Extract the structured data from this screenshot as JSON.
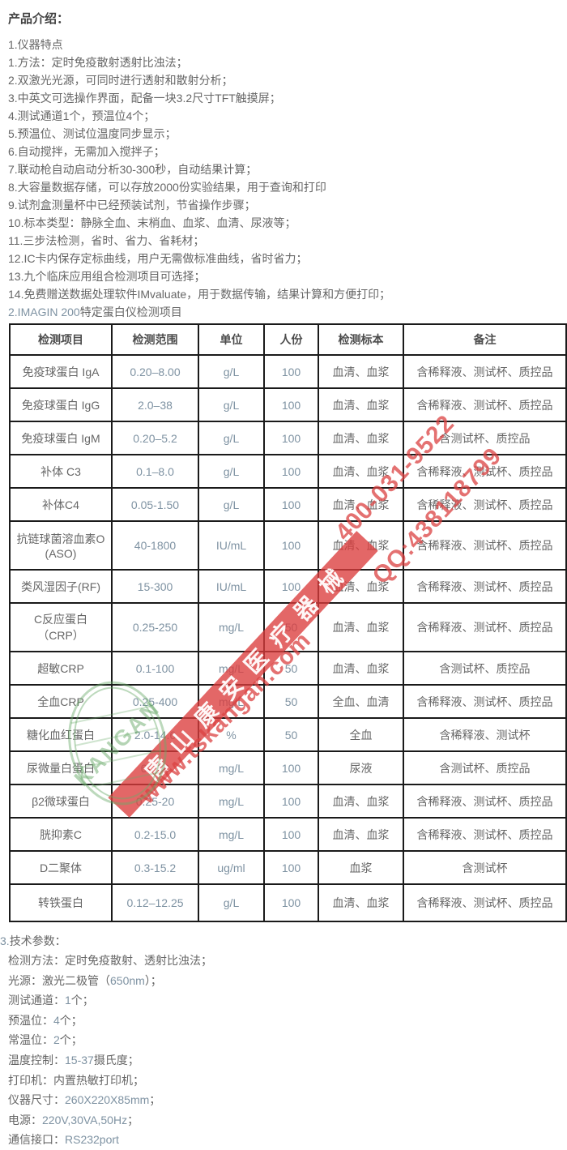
{
  "page": {
    "title": "产品介绍："
  },
  "features": {
    "heading": "1.仪器特点",
    "items": [
      "1.方法：定时免疫散射透射比浊法；",
      "2.双激光光源，可同时进行透射和散射分析；",
      "3.中英文可选操作界面，配备一块3.2尺寸TFT触摸屏；",
      "4.测试通道1个，预温位4个；",
      "5.预温位、测试位温度同步显示；",
      "6.自动搅拌，无需加入搅拌子；",
      "7.联动枪自动启动分析30-300秒，自动结果计算；",
      "8.大容量数据存储，可以存放2000份实验结果，用于查询和打印",
      "9.试剂盒测量杯中已经预装试剂，节省操作步骤；",
      "10.标本类型：静脉全血、末梢血、血浆、血清、尿液等；",
      "11.三步法检测，省时、省力、省耗材；",
      "12.IC卡内保存定标曲线，用户无需做标准曲线，省时省力；",
      "13.九个临床应用组合检测项目可选择；",
      "14.免费赠送数据处理软件IMvaluate，用于数据传输，结果计算和方便打印；"
    ]
  },
  "detection_section": {
    "title": "2.IMAGIN 200特定蛋白仪检测项目",
    "table": {
      "headers": [
        "检测项目",
        "检测范围",
        "单位",
        "人份",
        "检测标本",
        "备注"
      ],
      "rows": [
        {
          "item": "免疫球蛋白 IgA",
          "range": "0.20–8.00",
          "unit": "g/L",
          "count": "100",
          "sample": "血清、血浆",
          "note": "含稀释液、测试杯、质控品"
        },
        {
          "item": "免疫球蛋白 IgG",
          "range": "2.0–38",
          "unit": "g/L",
          "count": "100",
          "sample": "血清、血浆",
          "note": "含稀释液、测试杯、质控品"
        },
        {
          "item": "免疫球蛋白 IgM",
          "range": "0.20–5.2",
          "unit": "g/L",
          "count": "100",
          "sample": "血清、血浆",
          "note": "含测试杯、质控品"
        },
        {
          "item": "补体 C3",
          "range": "0.1–8.0",
          "unit": "g/L",
          "count": "100",
          "sample": "血清、血浆",
          "note": "含稀释液、测试杯、质控品"
        },
        {
          "item": "补体C4",
          "range": "0.05-1.50",
          "unit": "g/L",
          "count": "100",
          "sample": "血清、血浆",
          "note": "含稀释液、测试杯、质控品"
        },
        {
          "item": "抗链球菌溶血素O\n(ASO)",
          "range": "40-1800",
          "unit": "IU/mL",
          "count": "100",
          "sample": "血清、血浆",
          "note": "含稀释液、测试杯、质控品"
        },
        {
          "item": "类风湿因子(RF)",
          "range": "15-300",
          "unit": "IU/mL",
          "count": "100",
          "sample": "血清、血浆",
          "note": "含稀释液、测试杯、质控品"
        },
        {
          "item": "C反应蛋白\n（CRP）",
          "range": "0.25-250",
          "unit": "mg/L",
          "count": "50",
          "sample": "血清、血浆",
          "note": "含稀释液、测试杯、质控品"
        },
        {
          "item": "超敏CRP",
          "range": "0.1-100",
          "unit": "mg/L",
          "count": "50",
          "sample": "血清、血浆",
          "note": "含测试杯、质控品"
        },
        {
          "item": "全血CRP",
          "range": "0.25-400",
          "unit": "mg/L",
          "count": "50",
          "sample": "全血、血清",
          "note": "含稀释液、测试杯、质控品"
        },
        {
          "item": "糖化血红蛋白",
          "range": "2.0-14.6",
          "unit": "%",
          "count": "50",
          "sample": "全血",
          "note": "含稀释液、测试杯"
        },
        {
          "item": "尿微量白蛋白",
          "range": "6-360",
          "unit": "mg/L",
          "count": "100",
          "sample": "尿液",
          "note": "含测试杯、质控品"
        },
        {
          "item": "β2微球蛋白",
          "range": "0.25-20",
          "unit": "mg/L",
          "count": "100",
          "sample": "血清、血浆",
          "note": "含稀释液、测试杯、质控品"
        },
        {
          "item": "胱抑素C",
          "range": "0.2-15.0",
          "unit": "mg/L",
          "count": "100",
          "sample": "血清、血浆",
          "note": "含稀释液、测试杯、质控品"
        },
        {
          "item": "D二聚体",
          "range": "0.3-15.2",
          "unit": "ug/ml",
          "count": "100",
          "sample": "血浆",
          "note": "含测试杯"
        },
        {
          "item": "转铁蛋白",
          "range": "0.12–12.25",
          "unit": "g/L",
          "count": "100",
          "sample": "血清、血浆",
          "note": "含稀释液、测试杯、质控品"
        }
      ]
    }
  },
  "specs": {
    "heading": "3.技术参数：",
    "items": [
      "检测方法：定时免疫散射、透射比浊法；",
      "光源：激光二极管（650nm）；",
      "测试通道：1个；",
      "预温位：4个；",
      "常温位：2个；",
      "温度控制：15-37摄氏度；",
      "打印机：内置热敏打印机；",
      "仪器尺寸：260X220X85mm；",
      "电源：220V,30VA,50Hz；",
      "通信接口：RS232port"
    ]
  },
  "watermark": {
    "band_text": "唐山康安医疗器械",
    "phone": "400-031-9522",
    "qq": "QQ:438118799",
    "website": "www.tskangan.com",
    "stamp_text": "KANGAN",
    "red": "#db3c3c",
    "green": "#6aaa6a"
  }
}
